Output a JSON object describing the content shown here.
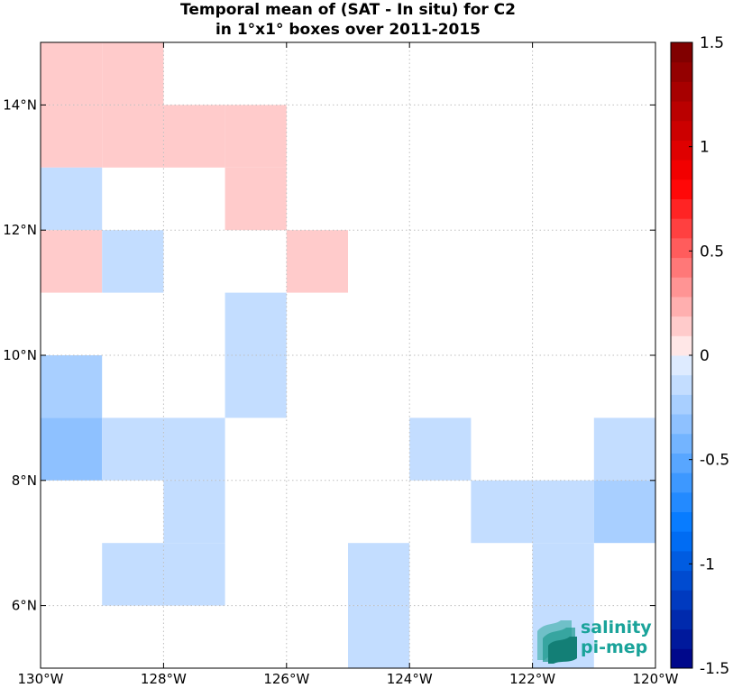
{
  "chart_data": {
    "type": "heatmap",
    "title": "Temporal mean of (SAT - In situ) for C2",
    "subtitle": "in 1°x1° boxes over 2011-2015",
    "xlim": [
      -130,
      -120
    ],
    "ylim": [
      5,
      15
    ],
    "x_ticks": [
      -130,
      -128,
      -126,
      -124,
      -122,
      -120
    ],
    "x_tick_labels": [
      "130°W",
      "128°W",
      "126°W",
      "124°W",
      "122°W",
      "120°W"
    ],
    "y_ticks": [
      6,
      8,
      10,
      12,
      14
    ],
    "y_tick_labels": [
      "6°N",
      "8°N",
      "10°N",
      "12°N",
      "14°N"
    ],
    "grid": true,
    "colorbar": {
      "range": [
        -1.5,
        1.5
      ],
      "ticks": [
        1.5,
        1,
        0.5,
        0,
        -0.5,
        -1,
        -1.5
      ],
      "tick_labels": [
        "1.5",
        "1",
        "0.5",
        "0",
        "-0.5",
        "-1",
        "-1.5"
      ]
    },
    "cells": [
      {
        "lon": -130,
        "lat": 14,
        "value": 0.15
      },
      {
        "lon": -129,
        "lat": 14,
        "value": 0.15
      },
      {
        "lon": -130,
        "lat": 13,
        "value": 0.15
      },
      {
        "lon": -129,
        "lat": 13,
        "value": 0.15
      },
      {
        "lon": -128,
        "lat": 13,
        "value": 0.15
      },
      {
        "lon": -127,
        "lat": 13,
        "value": 0.15
      },
      {
        "lon": -130,
        "lat": 12,
        "value": -0.15
      },
      {
        "lon": -127,
        "lat": 12,
        "value": 0.15
      },
      {
        "lon": -130,
        "lat": 11,
        "value": 0.15
      },
      {
        "lon": -129,
        "lat": 11,
        "value": -0.15
      },
      {
        "lon": -126,
        "lat": 11,
        "value": 0.15
      },
      {
        "lon": -127,
        "lat": 10,
        "value": -0.12
      },
      {
        "lon": -130,
        "lat": 9,
        "value": -0.25
      },
      {
        "lon": -127,
        "lat": 9,
        "value": -0.12
      },
      {
        "lon": -130,
        "lat": 8,
        "value": -0.35
      },
      {
        "lon": -129,
        "lat": 8,
        "value": -0.12
      },
      {
        "lon": -128,
        "lat": 8,
        "value": -0.12
      },
      {
        "lon": -124,
        "lat": 8,
        "value": -0.12
      },
      {
        "lon": -121,
        "lat": 8,
        "value": -0.12
      },
      {
        "lon": -128,
        "lat": 7,
        "value": -0.12
      },
      {
        "lon": -123,
        "lat": 7,
        "value": -0.12
      },
      {
        "lon": -122,
        "lat": 7,
        "value": -0.12
      },
      {
        "lon": -121,
        "lat": 7,
        "value": -0.25
      },
      {
        "lon": -129,
        "lat": 6,
        "value": -0.12
      },
      {
        "lon": -128,
        "lat": 6,
        "value": -0.12
      },
      {
        "lon": -125,
        "lat": 6,
        "value": -0.12
      },
      {
        "lon": -122,
        "lat": 6,
        "value": -0.12
      },
      {
        "lon": -125,
        "lat": 5,
        "value": -0.12
      },
      {
        "lon": -122,
        "lat": 5,
        "value": -0.12
      }
    ]
  },
  "logo": {
    "line1": "salinity",
    "line2": "pi-mep",
    "color": "#1aa39a"
  }
}
